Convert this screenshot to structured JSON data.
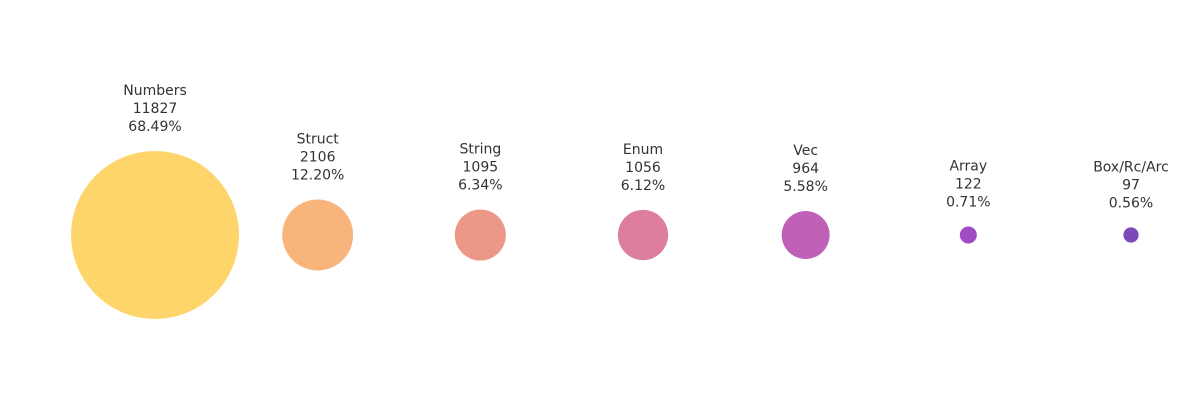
{
  "chart_data": {
    "type": "bubble",
    "title": "",
    "xlabel": "",
    "ylabel": "",
    "grid": false,
    "legend": "none",
    "categories": [
      "Numbers",
      "Struct",
      "String",
      "Enum",
      "Vec",
      "Array",
      "Box/Rc/Arc"
    ],
    "values": [
      11827,
      2106,
      1095,
      1056,
      964,
      122,
      97
    ],
    "percent_labels": [
      "68.49%",
      "12.20%",
      "6.34%",
      "6.12%",
      "5.58%",
      "0.71%",
      "0.56%"
    ],
    "colors": [
      "#fdd56b",
      "#f9b47c",
      "#ec9888",
      "#dd7e9f",
      "#c061b7",
      "#a04bc6",
      "#7e48b6"
    ]
  }
}
